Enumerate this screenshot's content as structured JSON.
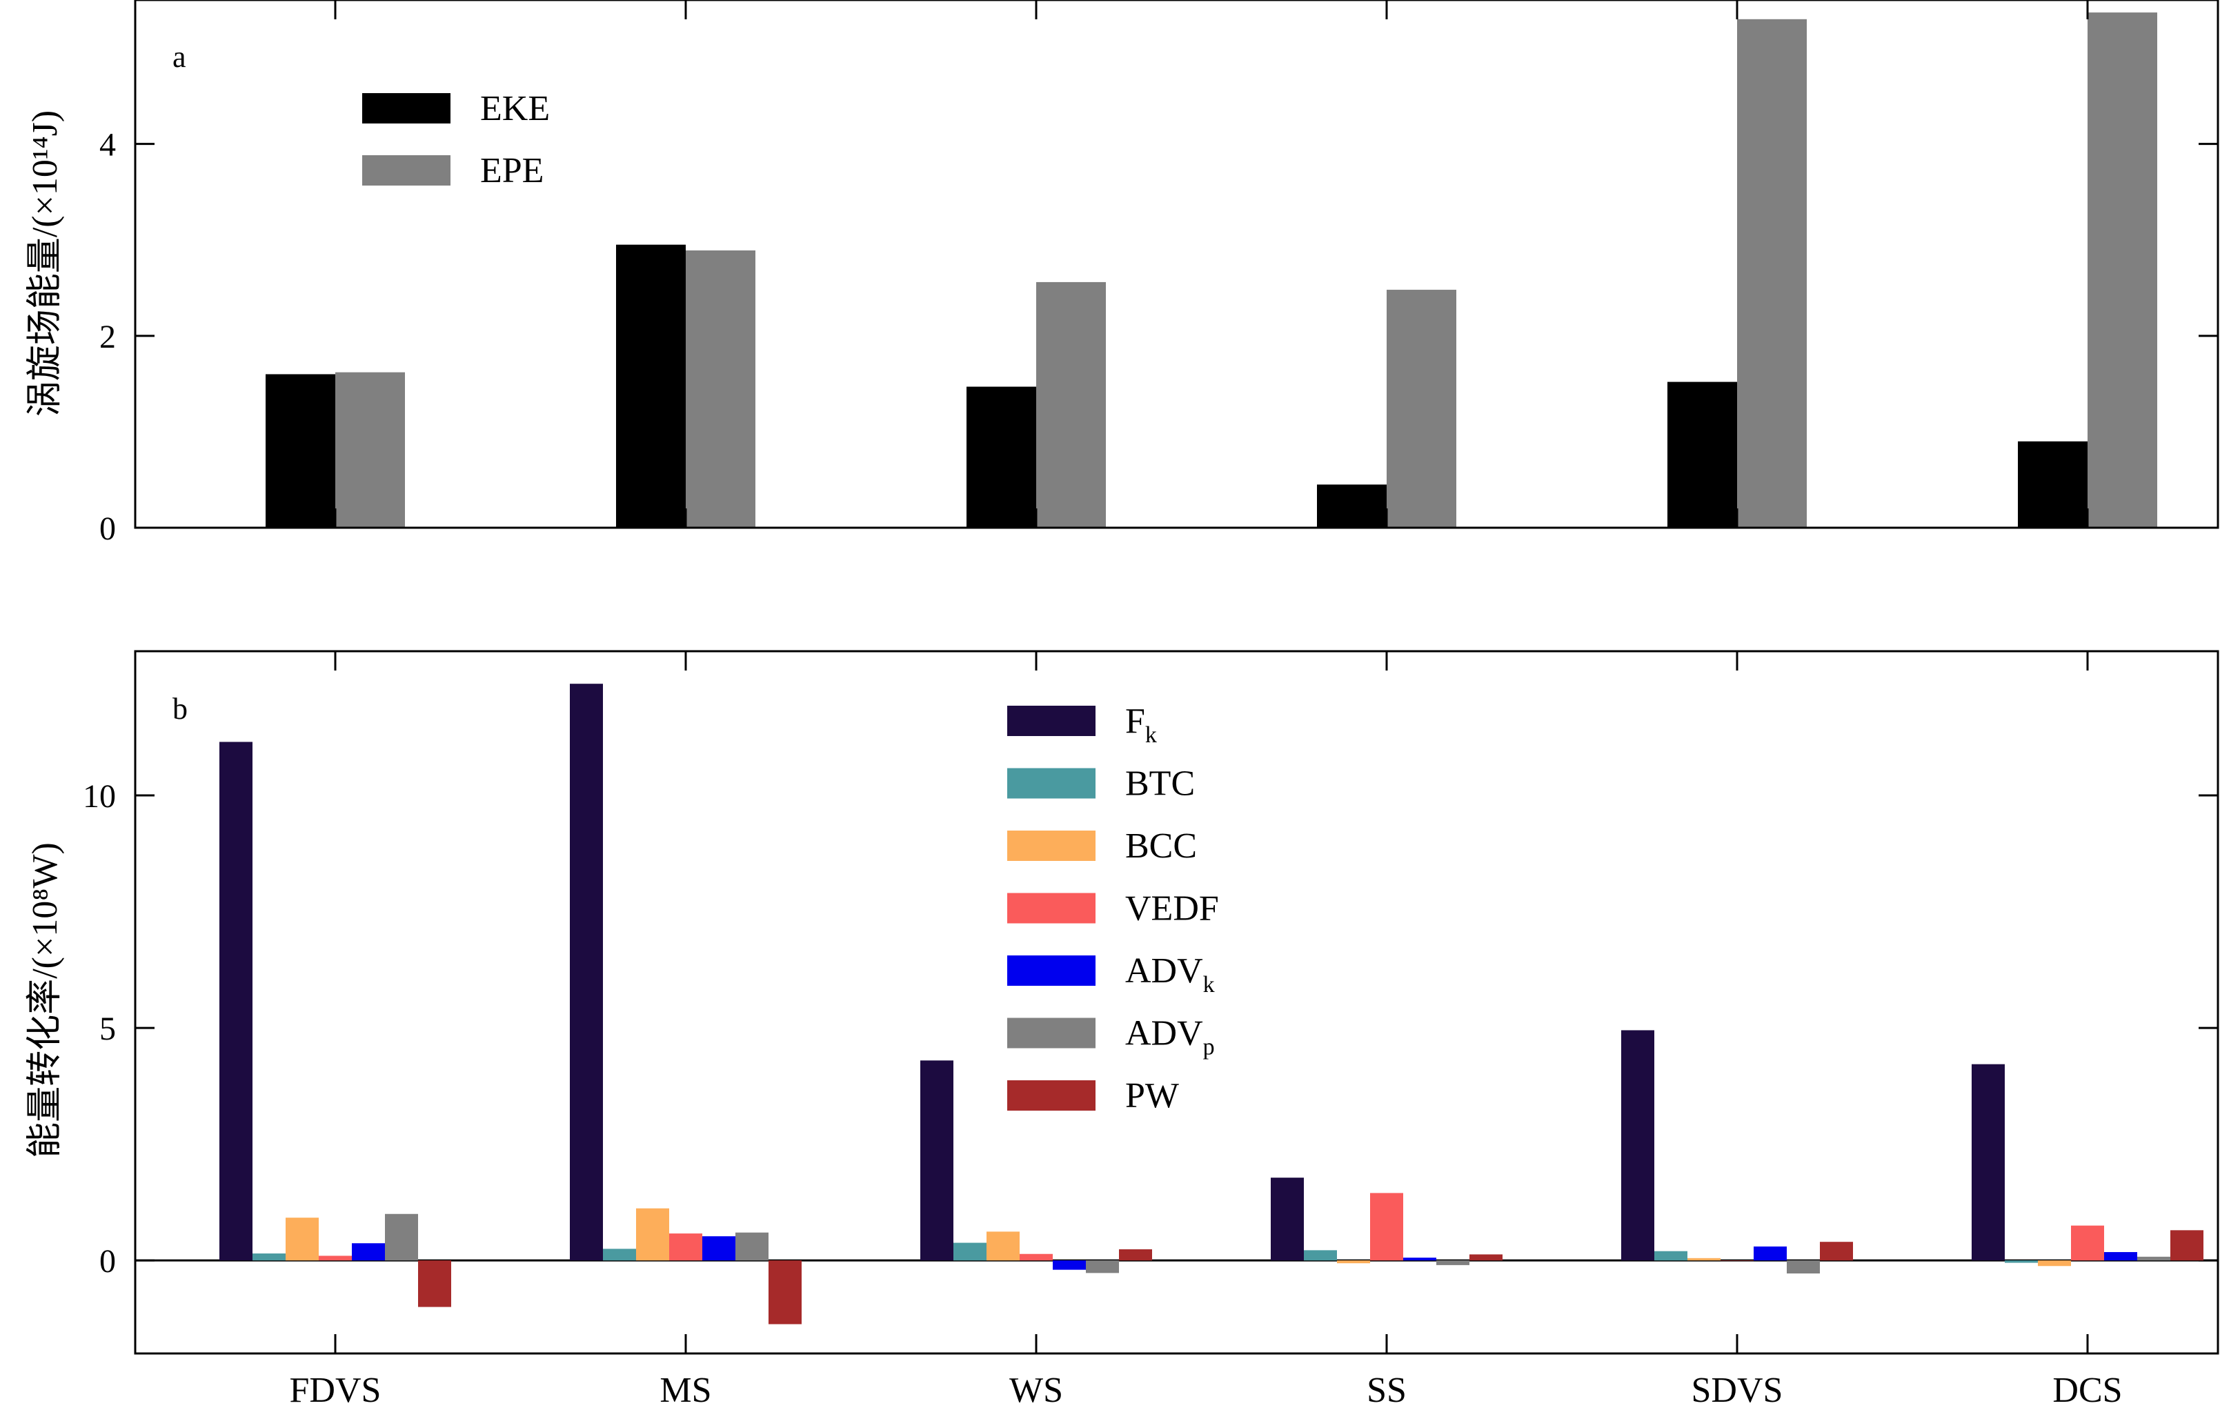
{
  "chart_data": [
    {
      "panel_label": "a",
      "type": "bar",
      "ylabel": "涡旋场能量/(×10¹⁴J)",
      "ylim": [
        0,
        5.5
      ],
      "yticks": [
        0,
        2,
        4
      ],
      "categories": [
        "FDVS",
        "MS",
        "WS",
        "SS",
        "SDVS",
        "DCS"
      ],
      "series": [
        {
          "name": "EKE",
          "color": "#000000",
          "values": [
            1.6,
            2.95,
            1.47,
            0.45,
            1.52,
            0.9
          ]
        },
        {
          "name": "EPE",
          "color": "#808080",
          "values": [
            1.62,
            2.89,
            2.56,
            2.48,
            5.3,
            5.37
          ]
        }
      ],
      "legend": {
        "placement": "top-left"
      }
    },
    {
      "panel_label": "b",
      "type": "bar",
      "ylabel": "能量转化率/(×10⁸W)",
      "ylim": [
        -2,
        13.1
      ],
      "yticks": [
        0,
        5,
        10
      ],
      "categories": [
        "FDVS",
        "MS",
        "WS",
        "SS",
        "SDVS",
        "DCS"
      ],
      "series": [
        {
          "name": "Fk",
          "name_base": "F",
          "name_sub": "k",
          "color": "#1c0b40",
          "values": [
            11.15,
            12.4,
            4.3,
            1.78,
            4.95,
            4.22
          ]
        },
        {
          "name": "BTC",
          "color": "#4a9aa0",
          "values": [
            0.15,
            0.25,
            0.38,
            0.22,
            0.2,
            -0.05
          ]
        },
        {
          "name": "BCC",
          "color": "#fdae5a",
          "values": [
            0.92,
            1.12,
            0.62,
            -0.06,
            0.05,
            -0.12
          ]
        },
        {
          "name": "VEDF",
          "color": "#fa5b5b",
          "values": [
            0.1,
            0.58,
            0.14,
            1.45,
            0.0,
            0.75
          ]
        },
        {
          "name": "ADVk",
          "name_base": "ADV",
          "name_sub": "k",
          "color": "#0000ee",
          "values": [
            0.37,
            0.52,
            -0.2,
            0.06,
            0.3,
            0.18
          ]
        },
        {
          "name": "ADVp",
          "name_base": "ADV",
          "name_sub": "p",
          "color": "#808080",
          "values": [
            1.0,
            0.6,
            -0.27,
            -0.1,
            -0.28,
            0.08
          ]
        },
        {
          "name": "PW",
          "color": "#a62a2a",
          "values": [
            -1.0,
            -1.37,
            0.24,
            0.13,
            0.4,
            0.65
          ]
        }
      ],
      "legend": {
        "placement": "top-center"
      }
    }
  ]
}
